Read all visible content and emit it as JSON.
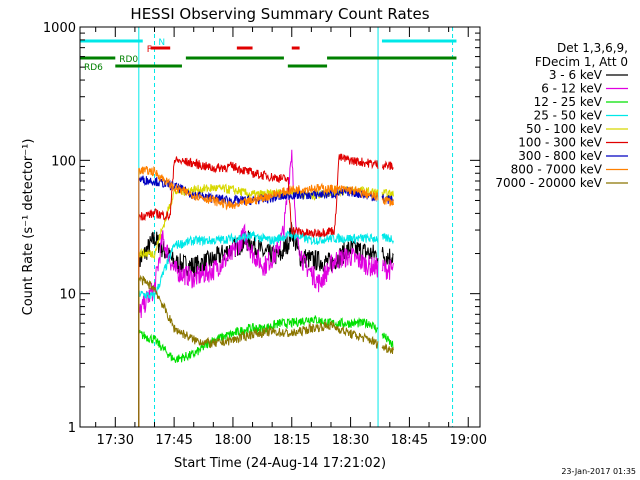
{
  "chart_data": {
    "type": "line",
    "title": "HESSI Observing Summary Count Rates",
    "xlabel": "Start Time (24-Aug-14 17:21:02)",
    "ylabel": "Count Rate (s⁻¹ detector⁻¹)",
    "yscale": "log",
    "ylim": [
      1,
      1000
    ],
    "xlim": [
      "17:21",
      "19:03"
    ],
    "yticks": [
      {
        "v": 1,
        "label": "1"
      },
      {
        "v": 10,
        "label": "10"
      },
      {
        "v": 100,
        "label": "100"
      },
      {
        "v": 1000,
        "label": "1000"
      }
    ],
    "xticks": [
      {
        "t": "17:30",
        "label": "17:30"
      },
      {
        "t": "17:45",
        "label": "17:45"
      },
      {
        "t": "18:00",
        "label": "18:00"
      },
      {
        "t": "18:15",
        "label": "18:15"
      },
      {
        "t": "18:30",
        "label": "18:30"
      },
      {
        "t": "18:45",
        "label": "18:45"
      },
      {
        "t": "19:00",
        "label": "19:00"
      }
    ],
    "legend_placement": "right",
    "legend_header": [
      "Det 1,3,6,9,",
      "FDecim 1, Att 0"
    ],
    "timestamp": "23-Jan-2017 01:35",
    "data_start": "17:36",
    "data_end": "18:41",
    "gaps": [
      [
        "18:37",
        "18:38"
      ]
    ],
    "series": [
      {
        "name": "3 - 6 keV",
        "color": "#000000",
        "points": [
          [
            "17:36",
            17
          ],
          [
            "17:40",
            26
          ],
          [
            "17:45",
            17
          ],
          [
            "17:50",
            16
          ],
          [
            "17:55",
            18
          ],
          [
            "18:00",
            22
          ],
          [
            "18:04",
            25
          ],
          [
            "18:08",
            20
          ],
          [
            "18:12",
            19
          ],
          [
            "18:14",
            24
          ],
          [
            "18:15",
            30
          ],
          [
            "18:17",
            19
          ],
          [
            "18:20",
            18
          ],
          [
            "18:25",
            17
          ],
          [
            "18:30",
            22
          ],
          [
            "18:35",
            20
          ],
          [
            "18:41",
            19
          ]
        ]
      },
      {
        "name": "6 - 12 keV",
        "color": "#e000e0",
        "points": [
          [
            "17:36",
            7
          ],
          [
            "17:38",
            9
          ],
          [
            "17:40",
            11
          ],
          [
            "17:42",
            26
          ],
          [
            "17:45",
            15
          ],
          [
            "17:50",
            13
          ],
          [
            "17:55",
            15
          ],
          [
            "18:00",
            20
          ],
          [
            "18:03",
            28
          ],
          [
            "18:05",
            20
          ],
          [
            "18:08",
            16
          ],
          [
            "18:11",
            20
          ],
          [
            "18:13",
            30
          ],
          [
            "18:15",
            120
          ],
          [
            "18:16",
            30
          ],
          [
            "18:18",
            17
          ],
          [
            "18:22",
            12
          ],
          [
            "18:26",
            18
          ],
          [
            "18:30",
            19
          ],
          [
            "18:35",
            16
          ],
          [
            "18:41",
            15
          ]
        ]
      },
      {
        "name": "12 - 25 keV",
        "color": "#00e000",
        "points": [
          [
            "17:36",
            5
          ],
          [
            "17:40",
            4.5
          ],
          [
            "17:45",
            3.2
          ],
          [
            "17:50",
            3.5
          ],
          [
            "17:55",
            4.5
          ],
          [
            "18:00",
            5
          ],
          [
            "18:04",
            5.5
          ],
          [
            "18:08",
            5.5
          ],
          [
            "18:12",
            6
          ],
          [
            "18:15",
            6
          ],
          [
            "18:20",
            6.5
          ],
          [
            "18:25",
            6
          ],
          [
            "18:30",
            6
          ],
          [
            "18:35",
            6
          ],
          [
            "18:38",
            5
          ],
          [
            "18:41",
            4
          ]
        ]
      },
      {
        "name": "25 - 50 keV",
        "color": "#00e8e8",
        "points": [
          [
            "17:36",
            10
          ],
          [
            "17:40",
            9.5
          ],
          [
            "17:45",
            23
          ],
          [
            "17:50",
            25
          ],
          [
            "17:55",
            25
          ],
          [
            "18:00",
            26
          ],
          [
            "18:05",
            27
          ],
          [
            "18:10",
            25
          ],
          [
            "18:15",
            28
          ],
          [
            "18:20",
            25
          ],
          [
            "18:25",
            26
          ],
          [
            "18:30",
            26
          ],
          [
            "18:35",
            26
          ],
          [
            "18:41",
            26
          ]
        ]
      },
      {
        "name": "50 - 100 keV",
        "color": "#d8d800",
        "points": [
          [
            "17:36",
            20
          ],
          [
            "17:40",
            20
          ],
          [
            "17:45",
            58
          ],
          [
            "17:50",
            60
          ],
          [
            "17:55",
            62
          ],
          [
            "18:00",
            60
          ],
          [
            "18:05",
            55
          ],
          [
            "18:10",
            56
          ],
          [
            "18:15",
            58
          ],
          [
            "18:20",
            54
          ],
          [
            "18:25",
            58
          ],
          [
            "18:30",
            60
          ],
          [
            "18:35",
            58
          ],
          [
            "18:41",
            55
          ]
        ]
      },
      {
        "name": "100 - 300 keV",
        "color": "#e00000",
        "points": [
          [
            "17:36",
            38
          ],
          [
            "17:40",
            40
          ],
          [
            "17:44",
            38
          ],
          [
            "17:45",
            100
          ],
          [
            "17:50",
            95
          ],
          [
            "17:55",
            87
          ],
          [
            "18:00",
            90
          ],
          [
            "18:05",
            80
          ],
          [
            "18:10",
            75
          ],
          [
            "18:14",
            72
          ],
          [
            "18:15",
            30
          ],
          [
            "18:20",
            28
          ],
          [
            "18:26",
            30
          ],
          [
            "18:27",
            105
          ],
          [
            "18:30",
            100
          ],
          [
            "18:35",
            95
          ],
          [
            "18:41",
            90
          ]
        ]
      },
      {
        "name": "300 - 800 keV",
        "color": "#0000c0",
        "points": [
          [
            "17:36",
            72
          ],
          [
            "17:40",
            70
          ],
          [
            "17:45",
            64
          ],
          [
            "17:50",
            55
          ],
          [
            "17:55",
            52
          ],
          [
            "18:00",
            50
          ],
          [
            "18:05",
            50
          ],
          [
            "18:10",
            52
          ],
          [
            "18:15",
            55
          ],
          [
            "18:20",
            55
          ],
          [
            "18:25",
            56
          ],
          [
            "18:30",
            58
          ],
          [
            "18:35",
            54
          ],
          [
            "18:41",
            50
          ]
        ]
      },
      {
        "name": "800 - 7000 keV",
        "color": "#ff8000",
        "points": [
          [
            "17:36",
            85
          ],
          [
            "17:40",
            82
          ],
          [
            "17:45",
            62
          ],
          [
            "17:50",
            55
          ],
          [
            "17:55",
            50
          ],
          [
            "18:00",
            45
          ],
          [
            "18:05",
            50
          ],
          [
            "18:10",
            55
          ],
          [
            "18:15",
            60
          ],
          [
            "18:20",
            62
          ],
          [
            "18:25",
            61
          ],
          [
            "18:30",
            60
          ],
          [
            "18:35",
            55
          ],
          [
            "18:41",
            48
          ]
        ]
      },
      {
        "name": "7000 - 20000 keV",
        "color": "#8b7500",
        "points": [
          [
            "17:36",
            13
          ],
          [
            "17:40",
            11
          ],
          [
            "17:45",
            5.5
          ],
          [
            "17:50",
            4.5
          ],
          [
            "17:55",
            4.2
          ],
          [
            "18:00",
            4.5
          ],
          [
            "18:05",
            5
          ],
          [
            "18:10",
            5.2
          ],
          [
            "18:15",
            5
          ],
          [
            "18:20",
            5.5
          ],
          [
            "18:25",
            5.8
          ],
          [
            "18:30",
            5
          ],
          [
            "18:35",
            4.5
          ],
          [
            "18:38",
            4
          ],
          [
            "18:41",
            3.8
          ]
        ]
      }
    ],
    "flag_bars": [
      {
        "label": "N",
        "color": "#00e8e8",
        "segments": [
          [
            "17:21",
            "17:37"
          ],
          [
            "18:38",
            "18:57"
          ]
        ],
        "level": 0
      },
      {
        "label": "F",
        "color": "#e00000",
        "segments": [
          [
            "17:39",
            "17:44"
          ],
          [
            "18:01",
            "18:05"
          ],
          [
            "18:15",
            "18:17"
          ]
        ],
        "level": 1
      },
      {
        "label": "RD0",
        "color": "#008000",
        "segments": [
          [
            "17:21",
            "17:30"
          ],
          [
            "17:48",
            "18:13"
          ],
          [
            "18:24",
            "18:57"
          ]
        ],
        "level": 2
      },
      {
        "label": "RD6",
        "color": "#008000",
        "segments": [
          [
            "17:30",
            "17:47"
          ],
          [
            "18:14",
            "18:24"
          ]
        ],
        "level": 3
      }
    ],
    "vlines_solid": [
      "17:36",
      "18:37"
    ],
    "vlines_dashed": [
      "17:40",
      "18:56"
    ]
  }
}
